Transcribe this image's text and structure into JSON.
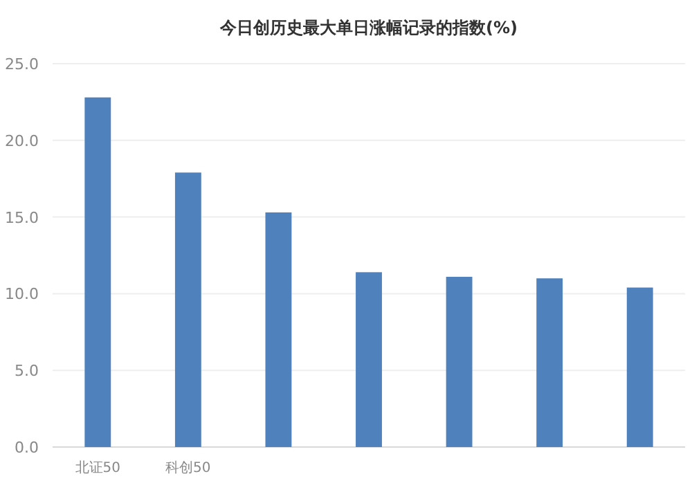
{
  "chart_data": {
    "type": "bar",
    "title": "今日创历史最大单日涨幅记录的指数(%)",
    "categories": [
      "北证50",
      "科创50",
      null,
      null,
      null,
      null,
      null
    ],
    "values": [
      22.8,
      17.9,
      15.3,
      11.4,
      11.1,
      11.0,
      10.4
    ],
    "color": "#4f81bd",
    "ylim": [
      0,
      25
    ],
    "yticks": [
      {
        "value": 0,
        "label": "0.0"
      },
      {
        "value": 5,
        "label": "5.0"
      },
      {
        "value": 10,
        "label": "10.0"
      },
      {
        "value": 15,
        "label": "15.0"
      },
      {
        "value": 20,
        "label": "20.0"
      },
      {
        "value": 25,
        "label": "25.0"
      }
    ],
    "grid": "y"
  }
}
